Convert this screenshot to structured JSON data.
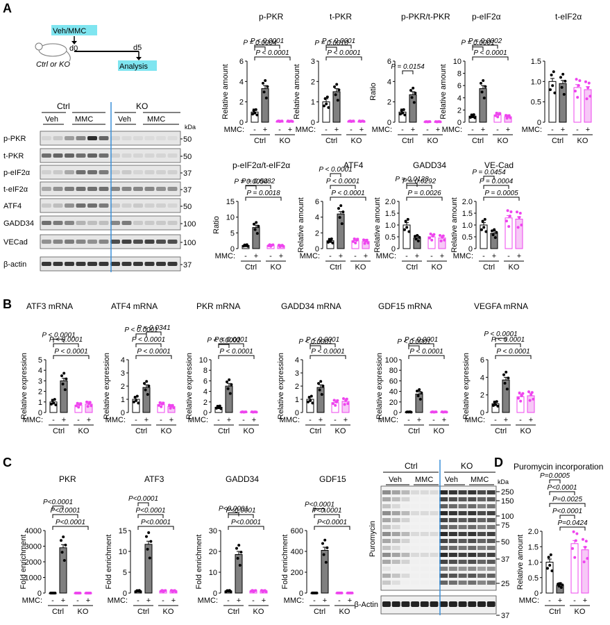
{
  "panel_letters": [
    "A",
    "B",
    "C",
    "D"
  ],
  "colors": {
    "ctrl_veh": "#ffffff",
    "ctrl_mmc": "#808080",
    "ko_veh": "#ffffff",
    "ko_mmc": "#f7c8f7",
    "ko_stroke": "#ee44ee",
    "divider": "#3a8fd8",
    "highlight": "#7fe5f0"
  },
  "schematic": {
    "treatment": "Veh/MMC",
    "day0": "d0",
    "day5": "d5",
    "genotype": "Ctrl or KO",
    "analysis": "Analysis"
  },
  "blot_a": {
    "ctrl": "Ctrl",
    "ko": "KO",
    "veh": "Veh",
    "mmc": "MMC",
    "kda": "kDa",
    "rows": [
      {
        "label": "p-PKR",
        "mw": "50"
      },
      {
        "label": "t-PKR",
        "mw": "50"
      },
      {
        "label": "p-eIF2α",
        "mw": "37"
      },
      {
        "label": "t-eIF2α",
        "mw": "37"
      },
      {
        "label": "ATF4",
        "mw": "50"
      },
      {
        "label": "GADD34",
        "mw": "100"
      },
      {
        "label": "VECad",
        "mw": "100"
      },
      {
        "label": "β-actin",
        "mw": "37"
      }
    ]
  },
  "blot_d": {
    "ctrl": "Ctrl",
    "ko": "KO",
    "veh": "Veh",
    "mmc": "MMC",
    "kda": "kDa",
    "ylabel": "Puromycin",
    "actin": "β-Actin",
    "markers": [
      "250",
      "150",
      "100",
      "75",
      "50",
      "37",
      "25"
    ],
    "actin_marker": "37"
  },
  "labels": {
    "mmc": "MMC:",
    "minus": "-",
    "plus": "+",
    "ctrl": "Ctrl",
    "ko": "KO"
  },
  "chart_data": [
    {
      "type": "bar",
      "title": "p-PKR",
      "ylabel": "Relative amount",
      "categories": [
        "Ctrl -",
        "Ctrl +",
        "KO -",
        "KO +"
      ],
      "values": [
        1.0,
        3.3,
        0.1,
        0.1
      ],
      "ylim": [
        0,
        6
      ],
      "yticks": [
        "0",
        "2",
        "4",
        "6"
      ],
      "pvalues": [
        "P = 0.0004",
        "P < 0.0001",
        "P < 0.0001"
      ]
    },
    {
      "type": "bar",
      "title": "t-PKR",
      "ylabel": "Relative amount",
      "categories": [
        "Ctrl -",
        "Ctrl +",
        "KO -",
        "KO +"
      ],
      "values": [
        1.0,
        1.5,
        0.05,
        0.05
      ],
      "ylim": [
        0,
        3
      ],
      "yticks": [
        "0",
        "1",
        "2",
        "3"
      ],
      "pvalues": [
        "P = 0.0010",
        "P < 0.0001",
        "P < 0.0001"
      ]
    },
    {
      "type": "bar",
      "title": "p-PKR/t-PKR",
      "ylabel": "Ratio",
      "categories": [
        "Ctrl -",
        "Ctrl +",
        "KO -",
        "KO +"
      ],
      "values": [
        1.0,
        2.7,
        0.05,
        0.05
      ],
      "ylim": [
        0,
        6
      ],
      "yticks": [
        "0",
        "2",
        "4",
        "6"
      ],
      "pvalues": [
        "P = 0.0154"
      ]
    },
    {
      "type": "bar",
      "title": "p-eIF2α",
      "ylabel": "Relative amount",
      "categories": [
        "Ctrl -",
        "Ctrl +",
        "KO -",
        "KO +"
      ],
      "values": [
        1.0,
        5.5,
        1.2,
        0.9
      ],
      "ylim": [
        0,
        10
      ],
      "yticks": [
        "0",
        "2",
        "4",
        "6",
        "8",
        "10"
      ],
      "pvalues": [
        "P = 0.0001",
        "P = 0.0002",
        "P < 0.0001"
      ]
    },
    {
      "type": "bar",
      "title": "t-eIF2α",
      "ylabel": "",
      "categories": [
        "Ctrl -",
        "Ctrl +",
        "KO -",
        "KO +"
      ],
      "values": [
        1.0,
        0.95,
        0.85,
        0.8
      ],
      "ylim": [
        0,
        1.5
      ],
      "yticks": [
        "0",
        "0.5",
        "1.0",
        "1.5"
      ],
      "pvalues": []
    },
    {
      "type": "bar",
      "title": "p-eIF2α/t-eIF2α",
      "ylabel": "Ratio",
      "categories": [
        "Ctrl -",
        "Ctrl +",
        "KO -",
        "KO +"
      ],
      "values": [
        1.0,
        6.7,
        1.0,
        0.9
      ],
      "ylim": [
        0,
        15
      ],
      "yticks": [
        "0",
        "5",
        "10",
        "15"
      ],
      "pvalues": [
        "P = 0.0054",
        "P = 0.0082",
        "P = 0.0018"
      ]
    },
    {
      "type": "bar",
      "title": "ATF4",
      "ylabel": "Relative amount",
      "categories": [
        "Ctrl -",
        "Ctrl +",
        "KO -",
        "KO +"
      ],
      "values": [
        1.0,
        4.4,
        1.0,
        0.9
      ],
      "ylim": [
        0,
        6
      ],
      "yticks": [
        "0",
        "2",
        "4",
        "6"
      ],
      "pvalues": [
        "P < 0.0001",
        "P < 0.0001",
        "P < 0.0001"
      ]
    },
    {
      "type": "bar",
      "title": "GADD34",
      "ylabel": "Relative amount",
      "categories": [
        "Ctrl -",
        "Ctrl +",
        "KO -",
        "KO +"
      ],
      "values": [
        1.0,
        0.45,
        0.5,
        0.45
      ],
      "ylim": [
        0,
        2.0
      ],
      "yticks": [
        "0",
        "0.5",
        "1.0",
        "1.5",
        "2.0"
      ],
      "pvalues": [
        "P = 0.0128",
        "P = 0.0292",
        "P = 0.0026"
      ]
    },
    {
      "type": "bar",
      "title": "VE-Cad",
      "ylabel": "Relative amount",
      "categories": [
        "Ctrl -",
        "Ctrl +",
        "KO -",
        "KO +"
      ],
      "values": [
        1.0,
        0.65,
        1.3,
        1.25
      ],
      "ylim": [
        0,
        2.0
      ],
      "yticks": [
        "0",
        "0.5",
        "1.0",
        "1.5",
        "2.0"
      ],
      "pvalues": [
        "P = 0.0454",
        "P = 0.0004",
        "P = 0.0005"
      ]
    },
    {
      "type": "bar",
      "title": "ATF3 mRNA",
      "ylabel": "Relative expression",
      "categories": [
        "Ctrl -",
        "Ctrl +",
        "KO -",
        "KO +"
      ],
      "values": [
        1.0,
        3.0,
        0.7,
        0.8
      ],
      "ylim": [
        0,
        5
      ],
      "yticks": [
        "0",
        "1",
        "2",
        "3",
        "4",
        "5"
      ],
      "pvalues": [
        "P < 0.0001",
        "P < 0.0001",
        "P < 0.0001"
      ]
    },
    {
      "type": "bar",
      "title": "ATF4 mRNA",
      "ylabel": "Relative expression",
      "categories": [
        "Ctrl -",
        "Ctrl +",
        "KO -",
        "KO +"
      ],
      "values": [
        1.0,
        1.9,
        0.6,
        0.45
      ],
      "ylim": [
        0,
        4
      ],
      "yticks": [
        "0",
        "1",
        "2",
        "3",
        "4"
      ],
      "pvalues": [
        "P < 0.0001",
        "P = 0.0341",
        "P < 0.0001",
        "P < 0.0001"
      ]
    },
    {
      "type": "bar",
      "title": "PKR mRNA",
      "ylabel": "Relative expression",
      "categories": [
        "Ctrl -",
        "Ctrl +",
        "KO -",
        "KO +"
      ],
      "values": [
        1.0,
        5.0,
        0.1,
        0.1
      ],
      "ylim": [
        0,
        10
      ],
      "yticks": [
        "0",
        "2",
        "4",
        "6",
        "8",
        "10"
      ],
      "pvalues": [
        "P < 0.0001",
        "P < 0.0001",
        "P < 0.0001"
      ]
    },
    {
      "type": "bar",
      "title": "GADD34 mRNA",
      "ylabel": "Relative expression",
      "categories": [
        "Ctrl -",
        "Ctrl +",
        "KO -",
        "KO +"
      ],
      "values": [
        1.0,
        1.9,
        0.75,
        0.85
      ],
      "ylim": [
        0,
        4
      ],
      "yticks": [
        "0",
        "1",
        "2",
        "3",
        "4"
      ],
      "pvalues": [
        "P < 0.0001",
        "P < 0.0001",
        "P < 0.0001"
      ]
    },
    {
      "type": "bar",
      "title": "GDF15 mRNA",
      "ylabel": "Relative expression",
      "categories": [
        "Ctrl -",
        "Ctrl +",
        "KO -",
        "KO +"
      ],
      "values": [
        1.0,
        35,
        1.0,
        1.0
      ],
      "ylim": [
        0,
        100
      ],
      "yticks": [
        "0",
        "20",
        "40",
        "60",
        "80",
        "100"
      ],
      "pvalues": [
        "P < 0.0001",
        "P < 0.0001",
        "P < 0.0001"
      ]
    },
    {
      "type": "bar",
      "title": "VEGFA mRNA",
      "ylabel": "Relative expression",
      "categories": [
        "Ctrl -",
        "Ctrl +",
        "KO -",
        "KO +"
      ],
      "values": [
        1.0,
        3.7,
        1.8,
        1.9
      ],
      "ylim": [
        0,
        6
      ],
      "yticks": [
        "0",
        "2",
        "4",
        "6"
      ],
      "pvalues": [
        "P < 0.0001",
        "P < 0.0001",
        "P < 0.0001"
      ]
    },
    {
      "type": "bar",
      "title": "PKR",
      "ylabel": "Fold enrichment",
      "categories": [
        "Ctrl -",
        "Ctrl +",
        "KO -",
        "KO +"
      ],
      "values": [
        1,
        2900,
        1,
        1
      ],
      "ylim": [
        0,
        4000
      ],
      "yticks": [
        "0",
        "1000",
        "2000",
        "3000",
        "4000"
      ],
      "pvalues": [
        "P<0.0001",
        "P<0.0001",
        "P<0.0001"
      ]
    },
    {
      "type": "bar",
      "title": "ATF3",
      "ylabel": "Fold enrichment",
      "categories": [
        "Ctrl -",
        "Ctrl +",
        "KO -",
        "KO +"
      ],
      "values": [
        0.5,
        11.7,
        0.5,
        0.5
      ],
      "ylim": [
        0,
        15
      ],
      "yticks": [
        "0",
        "5",
        "10",
        "15"
      ],
      "pvalues": [
        "P<0.0001",
        "P<0.0001",
        "P<0.0001"
      ]
    },
    {
      "type": "bar",
      "title": "GADD34",
      "ylabel": "Fold enrichment",
      "categories": [
        "Ctrl -",
        "Ctrl +",
        "KO -",
        "KO +"
      ],
      "values": [
        1,
        18.5,
        1,
        1
      ],
      "ylim": [
        0,
        30
      ],
      "yticks": [
        "0",
        "10",
        "20",
        "30"
      ],
      "pvalues": [
        "P<0.0001",
        "P<0.0001",
        "P<0.0001"
      ]
    },
    {
      "type": "bar",
      "title": "GDF15",
      "ylabel": "Fold enrichment",
      "categories": [
        "Ctrl -",
        "Ctrl +",
        "KO -",
        "KO +"
      ],
      "values": [
        1,
        410,
        1,
        1
      ],
      "ylim": [
        0,
        600
      ],
      "yticks": [
        "0",
        "200",
        "400",
        "600"
      ],
      "pvalues": [
        "P<0.0001",
        "P<0.0001",
        "P<0.0001"
      ]
    },
    {
      "type": "bar",
      "title": "Puromycin incorporation",
      "ylabel": "Relative amount",
      "categories": [
        "Ctrl -",
        "Ctrl +",
        "KO -",
        "KO +"
      ],
      "values": [
        1.0,
        0.25,
        1.6,
        1.4
      ],
      "ylim": [
        0,
        2.0
      ],
      "yticks": [
        "0",
        "0.5",
        "1.0",
        "1.5",
        "2.0"
      ],
      "pvalues": [
        "P=0.0005",
        "P<0.0001",
        "P=0.0025",
        "P<0.0001",
        "P=0.0424"
      ]
    }
  ]
}
